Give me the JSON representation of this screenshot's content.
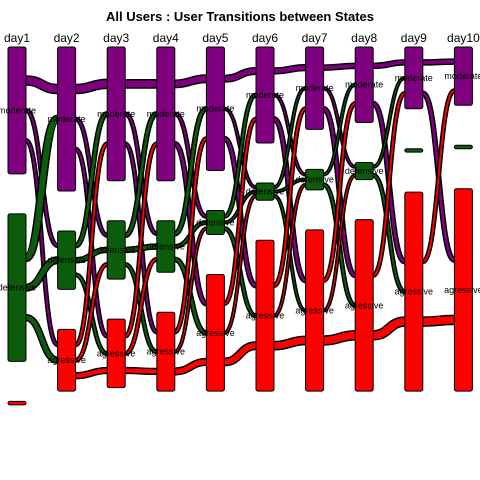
{
  "title": "All Users : User Transitions between States",
  "days": [
    "day1",
    "day2",
    "day3",
    "day4",
    "day5",
    "day6",
    "day7",
    "day8",
    "day9",
    "day10"
  ],
  "colors": {
    "moderate": "#7f007f",
    "defensive": "#0b5d0b",
    "agressive": "#ff0000",
    "stroke": "#000000"
  },
  "nodes": [
    {
      "day": 0,
      "state": "moderate",
      "label": "moderate",
      "share": 0.37
    },
    {
      "day": 0,
      "state": "defensive",
      "label": "defensive",
      "share": 0.43
    },
    {
      "day": 0,
      "state": "agressive",
      "label": "",
      "share": 0.01
    },
    {
      "day": 1,
      "state": "moderate",
      "label": "moderate",
      "share": 0.42
    },
    {
      "day": 1,
      "state": "defensive",
      "label": "defensive",
      "share": 0.17
    },
    {
      "day": 1,
      "state": "agressive",
      "label": "agressive",
      "share": 0.18
    },
    {
      "day": 2,
      "state": "moderate",
      "label": "moderate",
      "share": 0.39
    },
    {
      "day": 2,
      "state": "defensive",
      "label": "defensive",
      "share": 0.17
    },
    {
      "day": 2,
      "state": "agressive",
      "label": "agressive",
      "share": 0.2
    },
    {
      "day": 3,
      "state": "moderate",
      "label": "moderate",
      "share": 0.39
    },
    {
      "day": 3,
      "state": "defensive",
      "label": "defensive",
      "share": 0.15
    },
    {
      "day": 3,
      "state": "agressive",
      "label": "agressive",
      "share": 0.23
    },
    {
      "day": 4,
      "state": "moderate",
      "label": "moderate",
      "share": 0.36
    },
    {
      "day": 4,
      "state": "defensive",
      "label": "defensive",
      "share": 0.07
    },
    {
      "day": 4,
      "state": "agressive",
      "label": "agressive",
      "share": 0.34
    },
    {
      "day": 5,
      "state": "moderate",
      "label": "moderate",
      "share": 0.28
    },
    {
      "day": 5,
      "state": "defensive",
      "label": "defensive",
      "share": 0.05
    },
    {
      "day": 5,
      "state": "agressive",
      "label": "agressive",
      "share": 0.44
    },
    {
      "day": 6,
      "state": "moderate",
      "label": "moderate",
      "share": 0.24
    },
    {
      "day": 6,
      "state": "defensive",
      "label": "defensive",
      "share": 0.06
    },
    {
      "day": 6,
      "state": "agressive",
      "label": "agressive",
      "share": 0.47
    },
    {
      "day": 7,
      "state": "moderate",
      "label": "moderate",
      "share": 0.22
    },
    {
      "day": 7,
      "state": "defensive",
      "label": "defensive",
      "share": 0.05
    },
    {
      "day": 7,
      "state": "agressive",
      "label": "agressive",
      "share": 0.5
    },
    {
      "day": 8,
      "state": "moderate",
      "label": "moderate",
      "share": 0.18
    },
    {
      "day": 8,
      "state": "defensive",
      "label": "",
      "share": 0.01
    },
    {
      "day": 8,
      "state": "agressive",
      "label": "agressive",
      "share": 0.58
    },
    {
      "day": 9,
      "state": "moderate",
      "label": "moderate",
      "share": 0.17
    },
    {
      "day": 9,
      "state": "defensive",
      "label": "",
      "share": 0.01
    },
    {
      "day": 9,
      "state": "agressive",
      "label": "agressive",
      "share": 0.59
    }
  ],
  "flows": [
    {
      "day": 0,
      "from": "moderate",
      "to": "moderate",
      "weight": 1.0
    },
    {
      "day": 0,
      "from": "moderate",
      "to": "defensive",
      "weight": 0.3
    },
    {
      "day": 0,
      "from": "moderate",
      "to": "agressive",
      "weight": 0.3
    },
    {
      "day": 0,
      "from": "defensive",
      "to": "moderate",
      "weight": 0.8
    },
    {
      "day": 0,
      "from": "defensive",
      "to": "defensive",
      "weight": 0.7
    },
    {
      "day": 0,
      "from": "defensive",
      "to": "agressive",
      "weight": 0.6
    },
    {
      "day": 1,
      "from": "moderate",
      "to": "moderate",
      "weight": 1.0
    },
    {
      "day": 1,
      "from": "moderate",
      "to": "defensive",
      "weight": 0.3
    },
    {
      "day": 1,
      "from": "moderate",
      "to": "agressive",
      "weight": 0.3
    },
    {
      "day": 1,
      "from": "defensive",
      "to": "moderate",
      "weight": 0.4
    },
    {
      "day": 1,
      "from": "defensive",
      "to": "defensive",
      "weight": 0.5
    },
    {
      "day": 1,
      "from": "defensive",
      "to": "agressive",
      "weight": 0.3
    },
    {
      "day": 1,
      "from": "agressive",
      "to": "moderate",
      "weight": 0.3
    },
    {
      "day": 1,
      "from": "agressive",
      "to": "defensive",
      "weight": 0.3
    },
    {
      "day": 1,
      "from": "agressive",
      "to": "agressive",
      "weight": 0.6
    },
    {
      "day": 2,
      "from": "moderate",
      "to": "moderate",
      "weight": 0.9
    },
    {
      "day": 2,
      "from": "moderate",
      "to": "defensive",
      "weight": 0.3
    },
    {
      "day": 2,
      "from": "moderate",
      "to": "agressive",
      "weight": 0.3
    },
    {
      "day": 2,
      "from": "defensive",
      "to": "moderate",
      "weight": 0.4
    },
    {
      "day": 2,
      "from": "defensive",
      "to": "defensive",
      "weight": 0.5
    },
    {
      "day": 2,
      "from": "defensive",
      "to": "agressive",
      "weight": 0.3
    },
    {
      "day": 2,
      "from": "agressive",
      "to": "moderate",
      "weight": 0.3
    },
    {
      "day": 2,
      "from": "agressive",
      "to": "defensive",
      "weight": 0.3
    },
    {
      "day": 2,
      "from": "agressive",
      "to": "agressive",
      "weight": 0.6
    },
    {
      "day": 3,
      "from": "moderate",
      "to": "moderate",
      "weight": 0.8
    },
    {
      "day": 3,
      "from": "moderate",
      "to": "defensive",
      "weight": 0.3
    },
    {
      "day": 3,
      "from": "moderate",
      "to": "agressive",
      "weight": 0.4
    },
    {
      "day": 3,
      "from": "defensive",
      "to": "moderate",
      "weight": 0.4
    },
    {
      "day": 3,
      "from": "defensive",
      "to": "defensive",
      "weight": 0.3
    },
    {
      "day": 3,
      "from": "defensive",
      "to": "agressive",
      "weight": 0.4
    },
    {
      "day": 3,
      "from": "agressive",
      "to": "moderate",
      "weight": 0.3
    },
    {
      "day": 3,
      "from": "agressive",
      "to": "defensive",
      "weight": 0.2
    },
    {
      "day": 3,
      "from": "agressive",
      "to": "agressive",
      "weight": 0.7
    },
    {
      "day": 4,
      "from": "moderate",
      "to": "moderate",
      "weight": 0.7
    },
    {
      "day": 4,
      "from": "moderate",
      "to": "defensive",
      "weight": 0.2
    },
    {
      "day": 4,
      "from": "moderate",
      "to": "agressive",
      "weight": 0.4
    },
    {
      "day": 4,
      "from": "defensive",
      "to": "moderate",
      "weight": 0.3
    },
    {
      "day": 4,
      "from": "defensive",
      "to": "defensive",
      "weight": 0.2
    },
    {
      "day": 4,
      "from": "defensive",
      "to": "agressive",
      "weight": 0.3
    },
    {
      "day": 4,
      "from": "agressive",
      "to": "moderate",
      "weight": 0.3
    },
    {
      "day": 4,
      "from": "agressive",
      "to": "defensive",
      "weight": 0.2
    },
    {
      "day": 4,
      "from": "agressive",
      "to": "agressive",
      "weight": 0.8
    },
    {
      "day": 5,
      "from": "moderate",
      "to": "moderate",
      "weight": 0.6
    },
    {
      "day": 5,
      "from": "moderate",
      "to": "defensive",
      "weight": 0.2
    },
    {
      "day": 5,
      "from": "moderate",
      "to": "agressive",
      "weight": 0.4
    },
    {
      "day": 5,
      "from": "defensive",
      "to": "moderate",
      "weight": 0.2
    },
    {
      "day": 5,
      "from": "defensive",
      "to": "defensive",
      "weight": 0.2
    },
    {
      "day": 5,
      "from": "defensive",
      "to": "agressive",
      "weight": 0.2
    },
    {
      "day": 5,
      "from": "agressive",
      "to": "moderate",
      "weight": 0.3
    },
    {
      "day": 5,
      "from": "agressive",
      "to": "defensive",
      "weight": 0.2
    },
    {
      "day": 5,
      "from": "agressive",
      "to": "agressive",
      "weight": 0.9
    },
    {
      "day": 6,
      "from": "moderate",
      "to": "moderate",
      "weight": 0.5
    },
    {
      "day": 6,
      "from": "moderate",
      "to": "defensive",
      "weight": 0.2
    },
    {
      "day": 6,
      "from": "moderate",
      "to": "agressive",
      "weight": 0.4
    },
    {
      "day": 6,
      "from": "defensive",
      "to": "moderate",
      "weight": 0.2
    },
    {
      "day": 6,
      "from": "defensive",
      "to": "agressive",
      "weight": 0.3
    },
    {
      "day": 6,
      "from": "agressive",
      "to": "moderate",
      "weight": 0.3
    },
    {
      "day": 6,
      "from": "agressive",
      "to": "defensive",
      "weight": 0.2
    },
    {
      "day": 6,
      "from": "agressive",
      "to": "agressive",
      "weight": 1.0
    },
    {
      "day": 7,
      "from": "moderate",
      "to": "moderate",
      "weight": 0.5
    },
    {
      "day": 7,
      "from": "moderate",
      "to": "agressive",
      "weight": 0.4
    },
    {
      "day": 7,
      "from": "defensive",
      "to": "moderate",
      "weight": 0.2
    },
    {
      "day": 7,
      "from": "defensive",
      "to": "agressive",
      "weight": 0.3
    },
    {
      "day": 7,
      "from": "agressive",
      "to": "moderate",
      "weight": 0.3
    },
    {
      "day": 7,
      "from": "agressive",
      "to": "agressive",
      "weight": 1.0
    },
    {
      "day": 8,
      "from": "moderate",
      "to": "moderate",
      "weight": 0.5
    },
    {
      "day": 8,
      "from": "moderate",
      "to": "agressive",
      "weight": 0.4
    },
    {
      "day": 8,
      "from": "agressive",
      "to": "moderate",
      "weight": 0.3
    },
    {
      "day": 8,
      "from": "agressive",
      "to": "agressive",
      "weight": 1.0
    }
  ]
}
